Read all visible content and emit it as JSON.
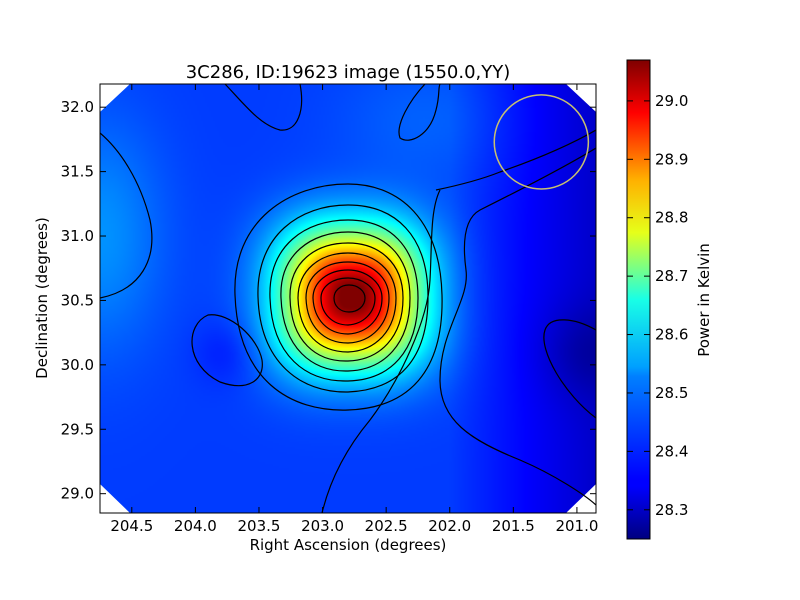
{
  "chart_data": {
    "type": "heatmap",
    "title": "3C286, ID:19623 image (1550.0,YY)",
    "xlabel": "Right Ascension (degrees)",
    "ylabel": "Declination (degrees)",
    "xlim": [
      204.75,
      200.85
    ],
    "ylim": [
      28.85,
      32.18
    ],
    "x_ticks": [
      "204.5",
      "204.0",
      "203.5",
      "203.0",
      "202.5",
      "202.0",
      "201.5",
      "201.0"
    ],
    "x_tick_values": [
      204.5,
      204.0,
      203.5,
      203.0,
      202.5,
      202.0,
      201.5,
      201.0
    ],
    "y_ticks": [
      "29.0",
      "29.5",
      "30.0",
      "30.5",
      "31.0",
      "31.5",
      "32.0"
    ],
    "y_tick_values": [
      29.0,
      29.5,
      30.0,
      30.5,
      31.0,
      31.5,
      32.0
    ],
    "colormap": "jet",
    "colorbar": {
      "label": "Power in Kelvin",
      "range": [
        28.25,
        29.07
      ],
      "ticks": [
        "28.3",
        "28.4",
        "28.5",
        "28.6",
        "28.7",
        "28.8",
        "28.9",
        "29.0"
      ],
      "tick_values": [
        28.3,
        28.4,
        28.5,
        28.6,
        28.7,
        28.8,
        28.9,
        29.0
      ]
    },
    "peak": {
      "ra": 202.77,
      "dec": 30.53,
      "value": 29.07
    },
    "contour_levels": [
      28.4,
      28.48,
      28.55,
      28.62,
      28.69,
      28.76,
      28.83,
      28.9,
      28.97,
      29.04
    ],
    "beam_circle": {
      "ra": 201.28,
      "dec": 31.73,
      "radius_deg": 0.37,
      "color": "#c8c070"
    }
  }
}
